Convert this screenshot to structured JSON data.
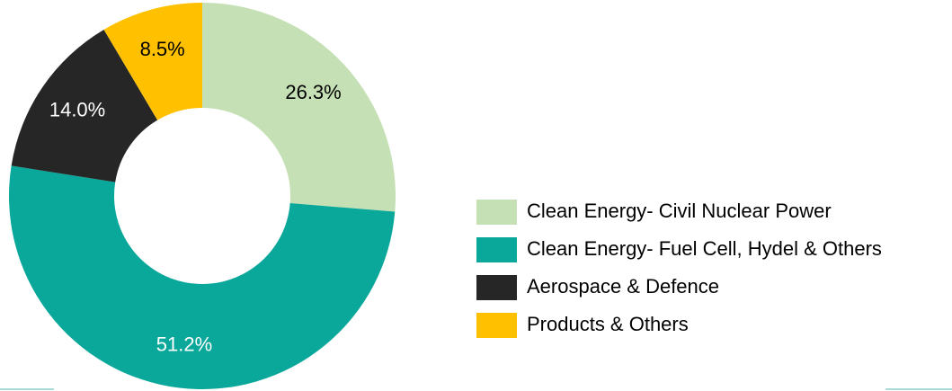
{
  "chart_data": {
    "type": "donut",
    "categories": [
      "Clean Energy- Civil Nuclear Power",
      "Clean Energy- Fuel Cell, Hydel & Others",
      "Aerospace & Defence",
      "Products & Others"
    ],
    "values": [
      26.3,
      51.2,
      14.0,
      8.5
    ],
    "value_labels": [
      "26.3%",
      "51.2%",
      "14.0%",
      "8.5%"
    ],
    "colors": [
      "#c5e0b4",
      "#0aa89b",
      "#262626",
      "#ffc000"
    ]
  }
}
